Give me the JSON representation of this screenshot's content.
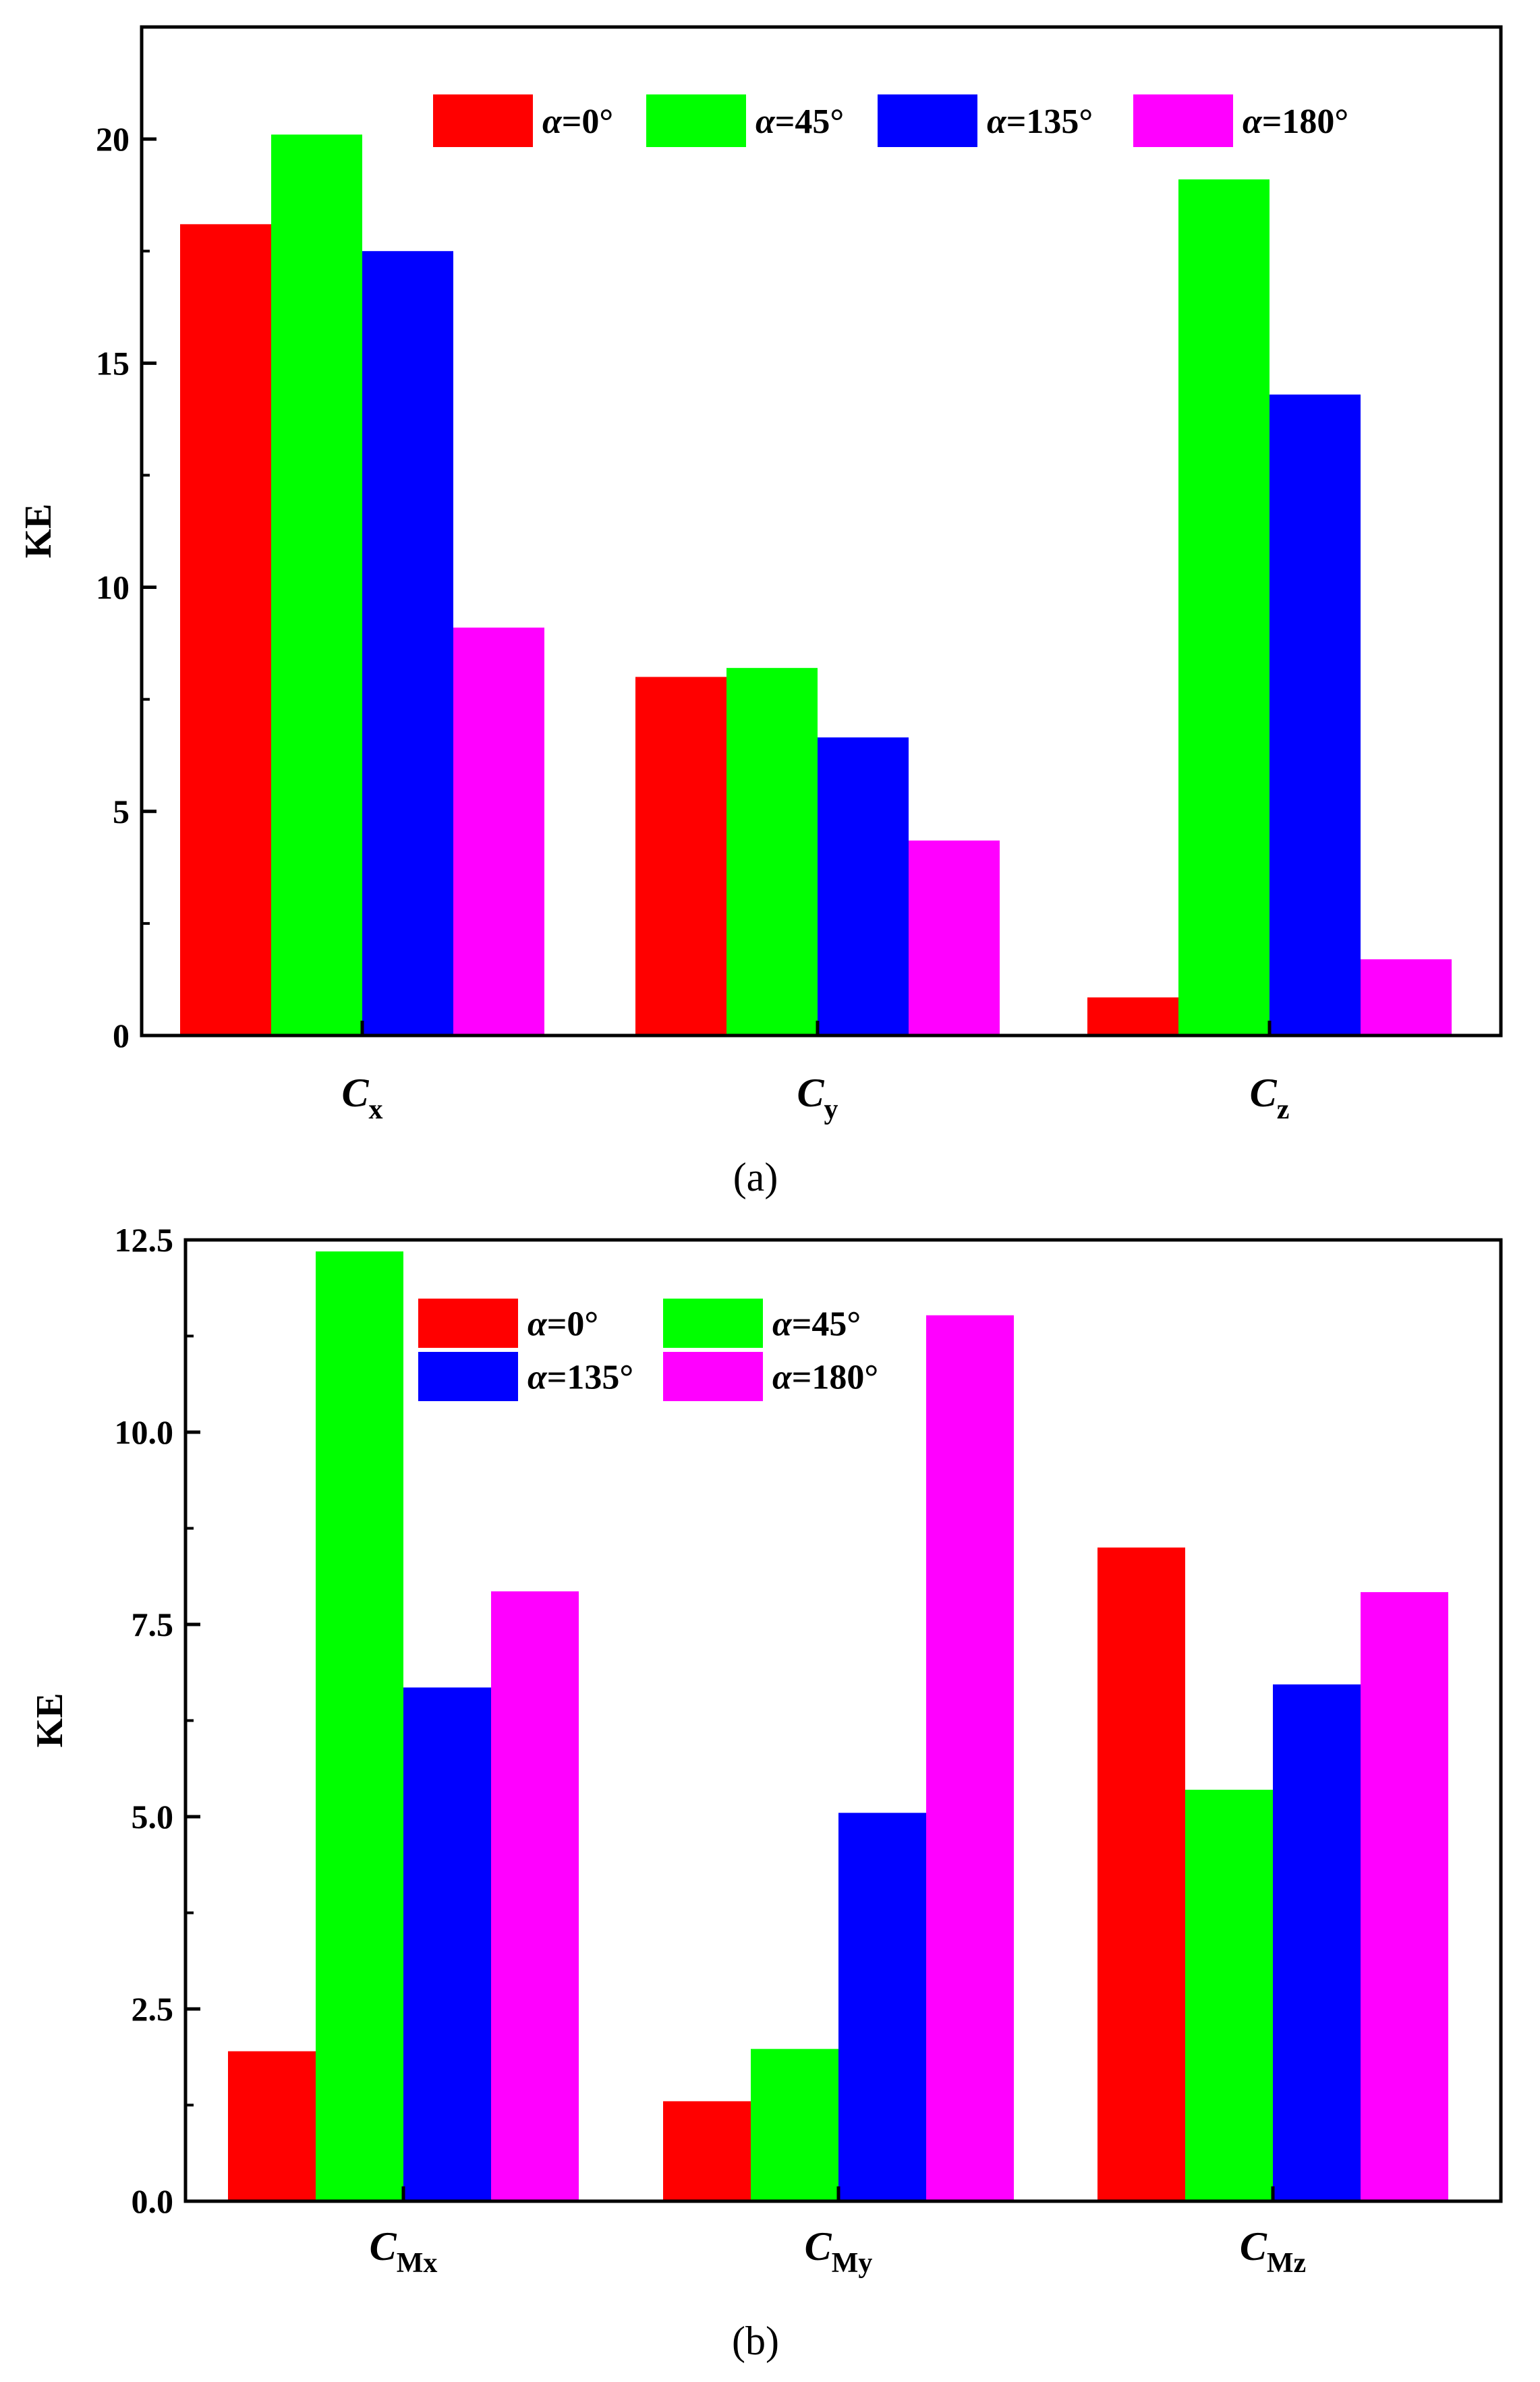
{
  "chart_data": [
    {
      "type": "bar",
      "panel_label": "(a)",
      "ylabel": "KE",
      "ylim": [
        0,
        22.5
      ],
      "yticks": [
        0,
        5,
        10,
        15,
        20
      ],
      "ytick_labels": [
        "0",
        "5",
        "10",
        "15",
        "20"
      ],
      "legend_position": "top",
      "categories": [
        {
          "main": "C",
          "sub": "x"
        },
        {
          "main": "C",
          "sub": "y"
        },
        {
          "main": "C",
          "sub": "z"
        }
      ],
      "series": [
        {
          "name": "α=0°",
          "alpha": "α",
          "rest": "=0°",
          "color": "#ff0000",
          "values": [
            18.1,
            8.0,
            0.85
          ]
        },
        {
          "name": "α=45°",
          "alpha": "α",
          "rest": "=45°",
          "color": "#00ff00",
          "values": [
            20.1,
            8.2,
            19.1
          ]
        },
        {
          "name": "α=135°",
          "alpha": "α",
          "rest": "=135°",
          "color": "#0000ff",
          "values": [
            17.5,
            6.65,
            14.3
          ]
        },
        {
          "name": "α=180°",
          "alpha": "α",
          "rest": "=180°",
          "color": "#ff00ff",
          "values": [
            9.1,
            4.35,
            1.7
          ]
        }
      ]
    },
    {
      "type": "bar",
      "panel_label": "(b)",
      "ylabel": "KE",
      "ylim": [
        0,
        12.5
      ],
      "yticks": [
        0,
        2.5,
        5,
        7.5,
        10,
        12.5
      ],
      "ytick_labels": [
        "0.0",
        "2.5",
        "5.0",
        "7.5",
        "10.0",
        "12.5"
      ],
      "legend_position": "top-left",
      "categories": [
        {
          "main": "C",
          "sub": "Mx"
        },
        {
          "main": "C",
          "sub": "My"
        },
        {
          "main": "C",
          "sub": "Mz"
        }
      ],
      "series": [
        {
          "name": "α=0°",
          "alpha": "α",
          "rest": "=0°",
          "color": "#ff0000",
          "values": [
            1.95,
            1.3,
            8.5
          ]
        },
        {
          "name": "α=45°",
          "alpha": "α",
          "rest": "=45°",
          "color": "#00ff00",
          "values": [
            12.35,
            1.98,
            5.35
          ]
        },
        {
          "name": "α=135°",
          "alpha": "α",
          "rest": "=135°",
          "color": "#0000ff",
          "values": [
            6.68,
            5.05,
            6.72
          ]
        },
        {
          "name": "α=180°",
          "alpha": "α",
          "rest": "=180°",
          "color": "#ff00ff",
          "values": [
            7.93,
            11.52,
            7.92
          ]
        }
      ]
    }
  ]
}
